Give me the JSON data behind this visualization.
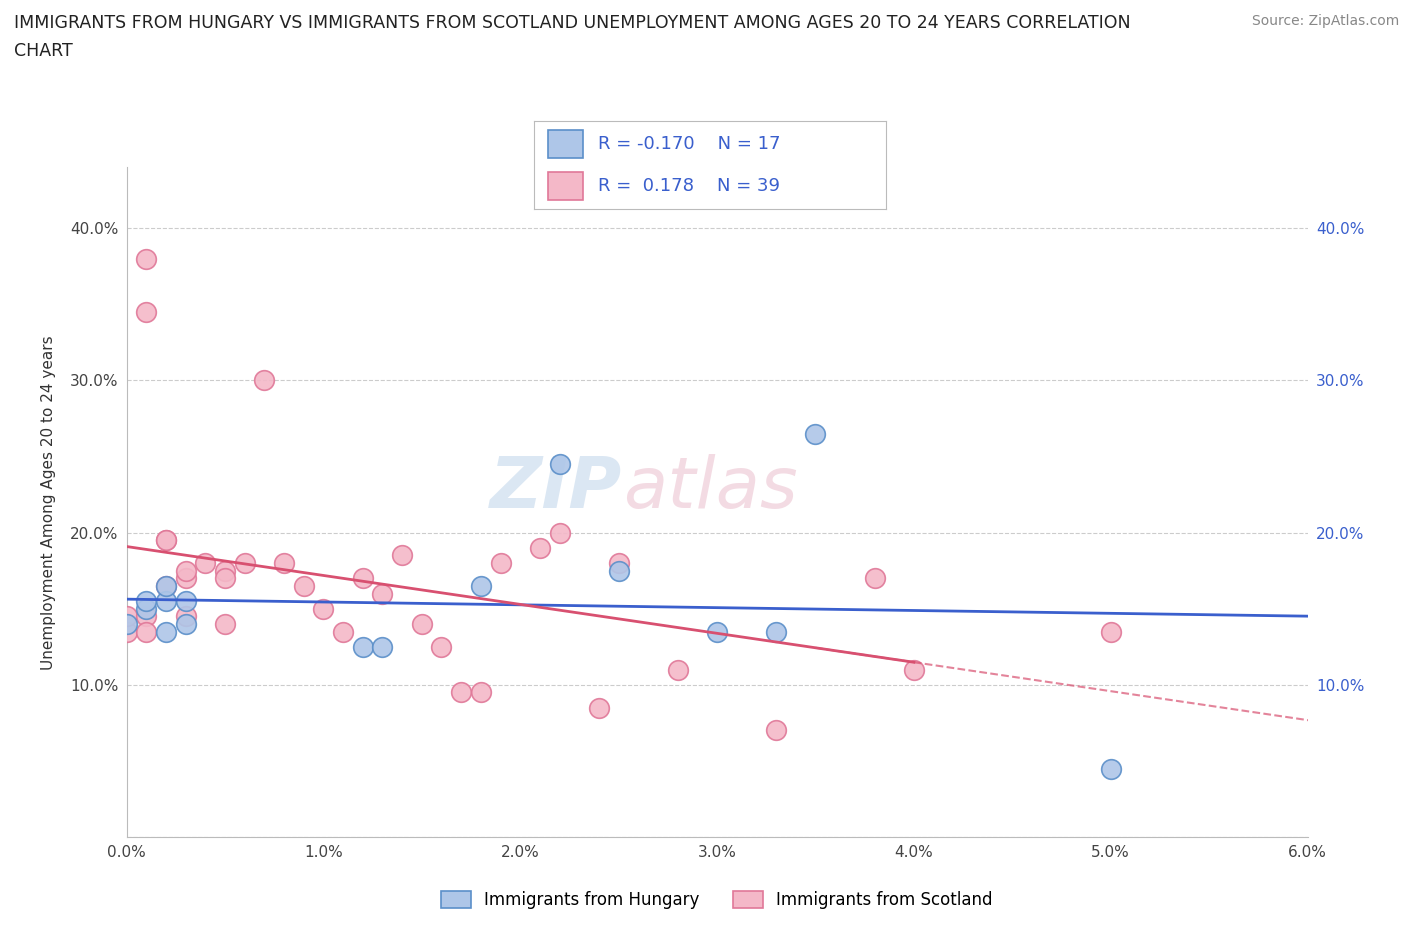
{
  "title_line1": "IMMIGRANTS FROM HUNGARY VS IMMIGRANTS FROM SCOTLAND UNEMPLOYMENT AMONG AGES 20 TO 24 YEARS CORRELATION",
  "title_line2": "CHART",
  "source": "Source: ZipAtlas.com",
  "ylabel": "Unemployment Among Ages 20 to 24 years",
  "xlim": [
    0.0,
    0.06
  ],
  "ylim": [
    0.0,
    0.44
  ],
  "xticks": [
    0.0,
    0.01,
    0.02,
    0.03,
    0.04,
    0.05,
    0.06
  ],
  "xtick_labels": [
    "0.0%",
    "1.0%",
    "2.0%",
    "3.0%",
    "4.0%",
    "5.0%",
    "6.0%"
  ],
  "yticks": [
    0.0,
    0.1,
    0.2,
    0.3,
    0.4
  ],
  "ytick_labels": [
    "",
    "10.0%",
    "20.0%",
    "30.0%",
    "40.0%"
  ],
  "right_ytick_labels": [
    "10.0%",
    "20.0%",
    "30.0%",
    "40.0%"
  ],
  "hungary_color": "#aec6e8",
  "scotland_color": "#f4b8c8",
  "hungary_edge": "#5b8fc9",
  "scotland_edge": "#e07898",
  "trend_hungary_color": "#3a5fcd",
  "trend_scotland_color": "#d85070",
  "R_hungary": -0.17,
  "N_hungary": 17,
  "R_scotland": 0.178,
  "N_scotland": 39,
  "hungary_x": [
    0.0,
    0.001,
    0.001,
    0.002,
    0.002,
    0.002,
    0.003,
    0.003,
    0.012,
    0.013,
    0.018,
    0.022,
    0.025,
    0.03,
    0.033,
    0.035,
    0.05
  ],
  "hungary_y": [
    0.14,
    0.15,
    0.155,
    0.135,
    0.155,
    0.165,
    0.14,
    0.155,
    0.125,
    0.125,
    0.165,
    0.245,
    0.175,
    0.135,
    0.135,
    0.265,
    0.045
  ],
  "scotland_x": [
    0.0,
    0.0,
    0.001,
    0.001,
    0.001,
    0.001,
    0.002,
    0.002,
    0.002,
    0.003,
    0.003,
    0.003,
    0.004,
    0.005,
    0.005,
    0.005,
    0.006,
    0.007,
    0.008,
    0.009,
    0.01,
    0.011,
    0.012,
    0.013,
    0.014,
    0.015,
    0.016,
    0.017,
    0.018,
    0.019,
    0.021,
    0.022,
    0.024,
    0.025,
    0.028,
    0.033,
    0.038,
    0.04,
    0.05
  ],
  "scotland_y": [
    0.135,
    0.145,
    0.38,
    0.345,
    0.145,
    0.135,
    0.195,
    0.195,
    0.165,
    0.145,
    0.17,
    0.175,
    0.18,
    0.175,
    0.17,
    0.14,
    0.18,
    0.3,
    0.18,
    0.165,
    0.15,
    0.135,
    0.17,
    0.16,
    0.185,
    0.14,
    0.125,
    0.095,
    0.095,
    0.18,
    0.19,
    0.2,
    0.085,
    0.18,
    0.11,
    0.07,
    0.17,
    0.11,
    0.135
  ],
  "watermark_text": "ZIP",
  "watermark_text2": "atlas",
  "background_color": "#ffffff",
  "grid_color": "#cccccc"
}
